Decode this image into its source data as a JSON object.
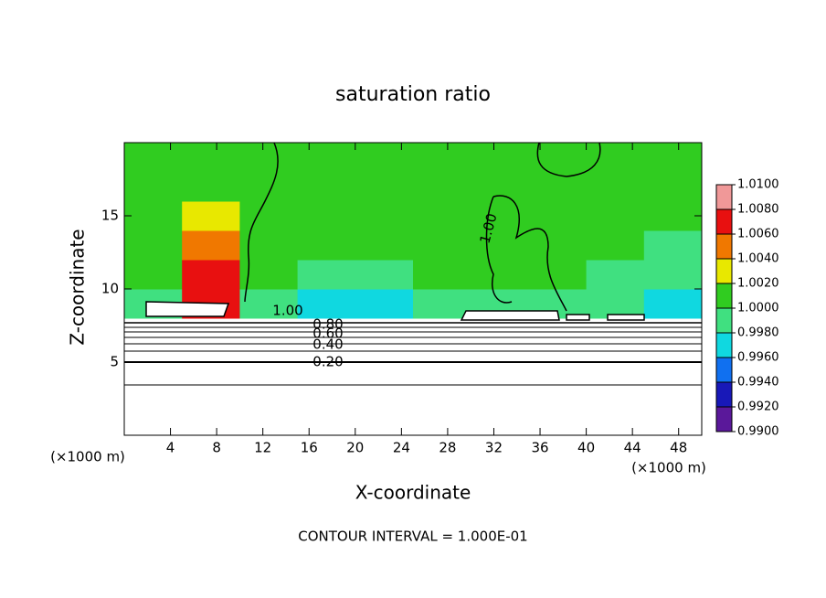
{
  "chart_data": {
    "type": "contour",
    "title": "saturation ratio",
    "xlabel": "X-coordinate",
    "ylabel": "Z-coordinate",
    "x_unit": "(×1000 m)",
    "y_unit": "(×1000 m)",
    "footnote": "CONTOUR INTERVAL = 1.000E-01",
    "xlim": [
      0,
      50
    ],
    "ylim": [
      0,
      20
    ],
    "xticks": [
      4,
      8,
      12,
      16,
      20,
      24,
      28,
      32,
      36,
      40,
      44,
      48
    ],
    "yticks": [
      5,
      10,
      15
    ],
    "field": {
      "x_edges": [
        0,
        5,
        10,
        15,
        20,
        25,
        30,
        35,
        40,
        45,
        50
      ],
      "z_edges": [
        0,
        2,
        4,
        6,
        8,
        10,
        12,
        14,
        16,
        18,
        20
      ],
      "values": [
        [
          0.1,
          0.1,
          0.1,
          0.1,
          0.1,
          0.1,
          0.1,
          0.1,
          0.1,
          0.1
        ],
        [
          0.3,
          0.3,
          0.3,
          0.3,
          0.3,
          0.3,
          0.3,
          0.3,
          0.3,
          0.3
        ],
        [
          0.5,
          0.5,
          0.5,
          0.5,
          0.5,
          0.5,
          0.5,
          0.5,
          0.5,
          0.5
        ],
        [
          0.85,
          0.85,
          0.85,
          0.85,
          0.85,
          0.85,
          0.85,
          0.85,
          0.85,
          0.85
        ],
        [
          0.9985,
          1.0075,
          0.9985,
          0.9965,
          0.9975,
          0.9985,
          0.9985,
          0.9985,
          0.9985,
          0.9965
        ],
        [
          1.0005,
          1.0065,
          1.0005,
          0.9985,
          0.9985,
          1.0001,
          1.0001,
          1.0001,
          0.9985,
          0.9985
        ],
        [
          1.0005,
          1.0045,
          1.0005,
          1.0001,
          1.0001,
          1.0001,
          1.0001,
          1.0001,
          1.0001,
          0.9985
        ],
        [
          1.0005,
          1.0025,
          1.0005,
          1.0001,
          1.0001,
          1.0001,
          1.0001,
          1.0001,
          1.0001,
          1.0001
        ],
        [
          1.0005,
          1.0015,
          1.0005,
          1.0001,
          1.0001,
          1.0001,
          1.0001,
          1.0001,
          1.0001,
          1.0001
        ],
        [
          1.0005,
          1.0005,
          1.0001,
          1.0001,
          1.0001,
          1.0001,
          1.0001,
          1.0001,
          1.0001,
          1.0001
        ]
      ]
    },
    "colorbar": {
      "ticks": [
        {
          "value": 0.99,
          "label": "0.9900"
        },
        {
          "value": 0.992,
          "label": "0.9920"
        },
        {
          "value": 0.994,
          "label": "0.9940"
        },
        {
          "value": 0.996,
          "label": "0.9960"
        },
        {
          "value": 0.998,
          "label": "0.9980"
        },
        {
          "value": 1.0,
          "label": "1.0000"
        },
        {
          "value": 1.002,
          "label": "1.0020"
        },
        {
          "value": 1.004,
          "label": "1.0040"
        },
        {
          "value": 1.006,
          "label": "1.0060"
        },
        {
          "value": 1.008,
          "label": "1.0080"
        },
        {
          "value": 1.01,
          "label": "1.0100"
        }
      ],
      "colors": [
        "#5a189a",
        "#1818b8",
        "#1070f0",
        "#10d8e0",
        "#40e080",
        "#30cc20",
        "#e8e800",
        "#f07800",
        "#e81010",
        "#f09898"
      ]
    },
    "contour_labels": [
      "1.00",
      "1.00",
      "0.80",
      "0.60",
      "0.40",
      "0.20"
    ]
  }
}
